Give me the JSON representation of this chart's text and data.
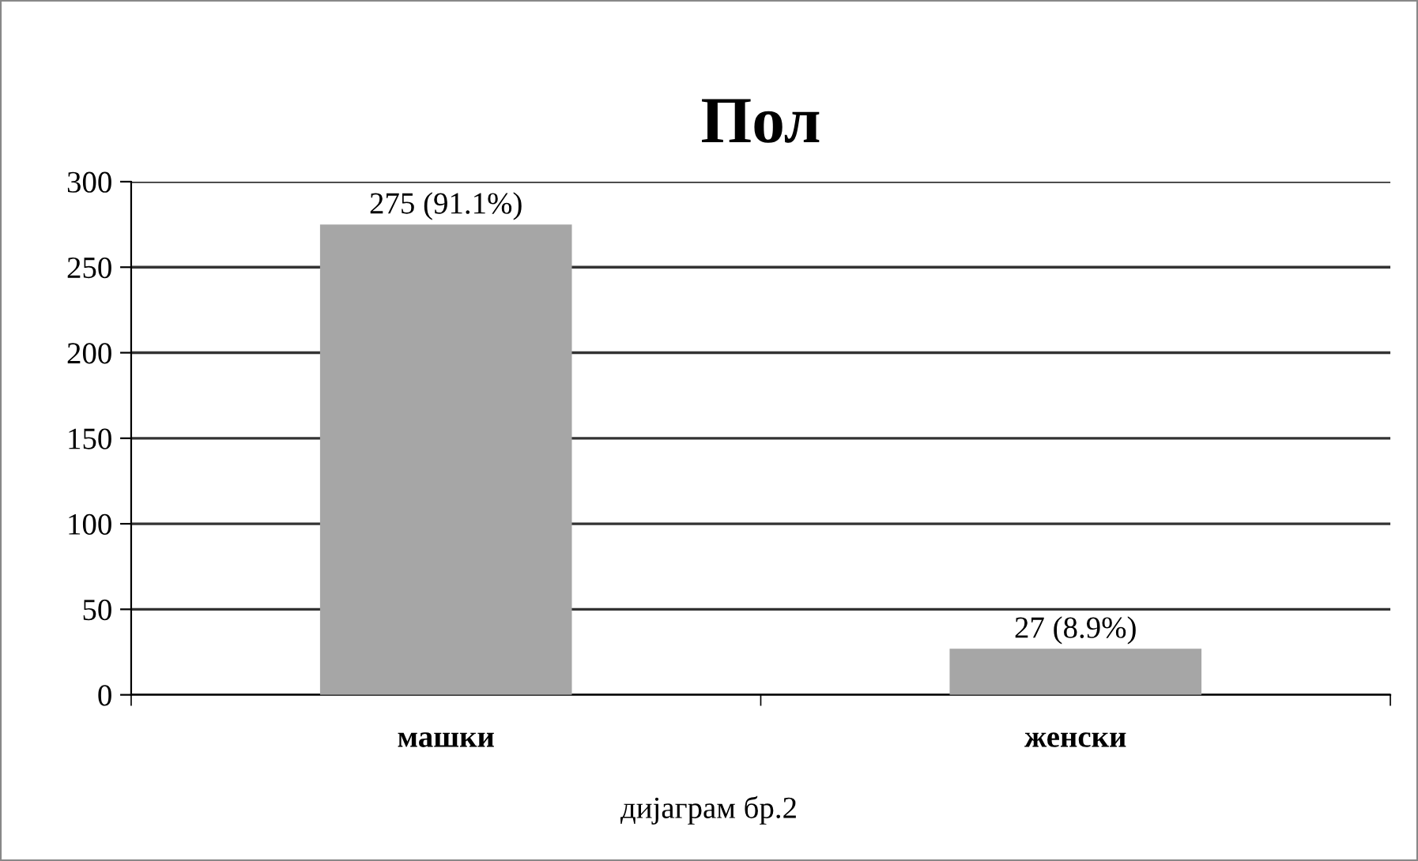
{
  "chart_data": {
    "type": "bar",
    "title": "Пол",
    "categories": [
      "машки",
      "женски"
    ],
    "values": [
      275,
      27
    ],
    "color": "#a6a6a6",
    "value_labels": [
      "275 (91.1%)",
      "27 (8.9%)"
    ],
    "ylim": [
      0,
      300
    ],
    "yticks": [
      0,
      50,
      100,
      150,
      200,
      250,
      300
    ],
    "grid": "y",
    "annotations": [
      "дијаграм бр.2"
    ]
  }
}
